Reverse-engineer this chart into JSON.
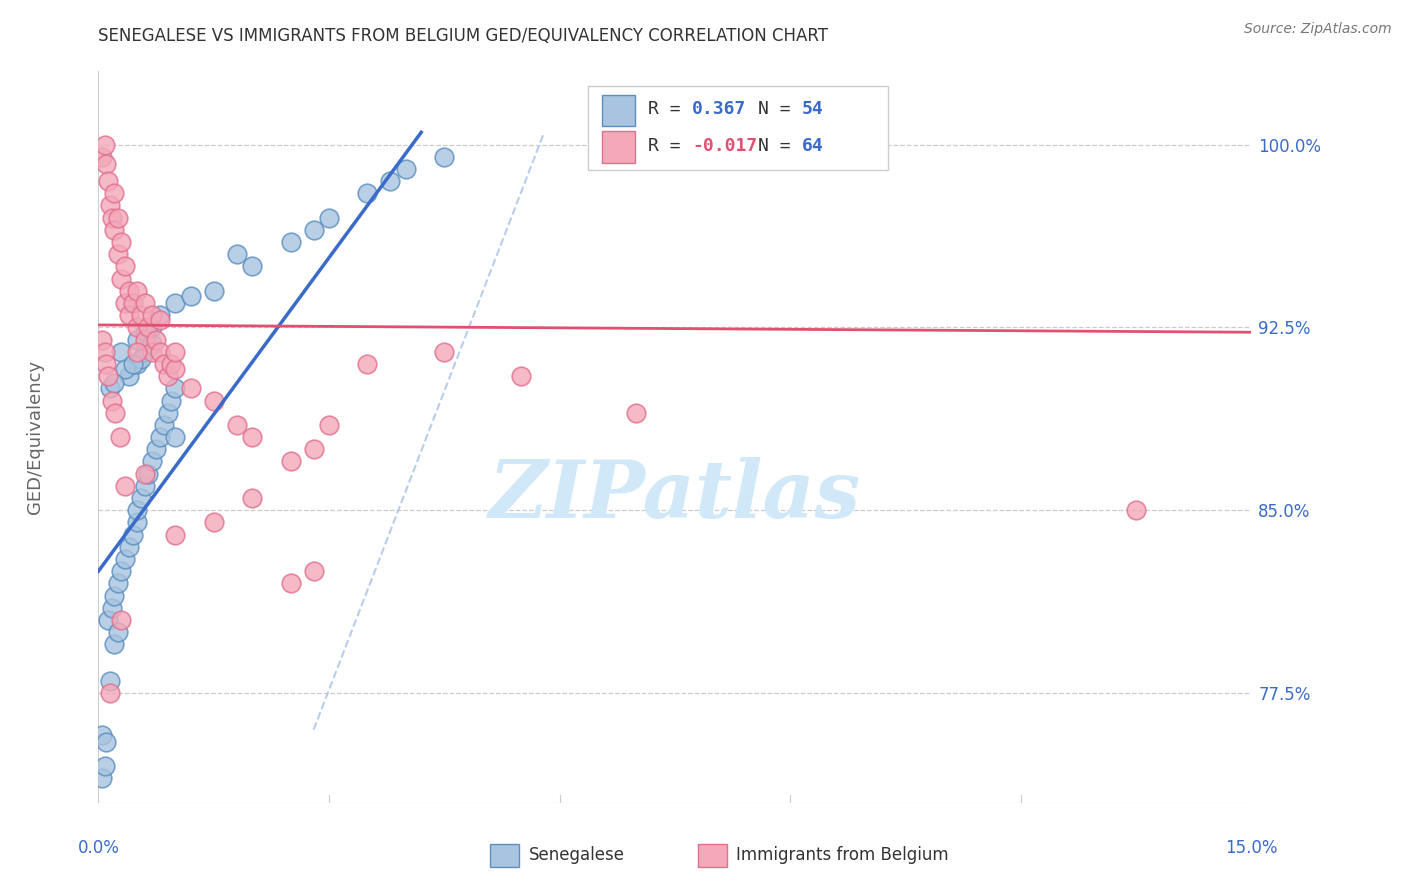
{
  "title": "SENEGALESE VS IMMIGRANTS FROM BELGIUM GED/EQUIVALENCY CORRELATION CHART",
  "source": "Source: ZipAtlas.com",
  "ylabel": "GED/Equivalency",
  "ytick_positions": [
    77.5,
    85.0,
    92.5,
    100.0
  ],
  "ytick_labels": [
    "77.5%",
    "85.0%",
    "92.5%",
    "100.0%"
  ],
  "xmin": 0.0,
  "xmax": 15.0,
  "ymin": 73.0,
  "ymax": 103.0,
  "blue_scatter": [
    [
      0.05,
      74.0
    ],
    [
      0.08,
      74.5
    ],
    [
      0.05,
      75.8
    ],
    [
      0.1,
      75.5
    ],
    [
      0.12,
      80.5
    ],
    [
      0.18,
      81.0
    ],
    [
      0.2,
      81.5
    ],
    [
      0.25,
      82.0
    ],
    [
      0.3,
      82.5
    ],
    [
      0.35,
      83.0
    ],
    [
      0.4,
      83.5
    ],
    [
      0.45,
      84.0
    ],
    [
      0.5,
      84.5
    ],
    [
      0.5,
      85.0
    ],
    [
      0.55,
      85.5
    ],
    [
      0.6,
      86.0
    ],
    [
      0.65,
      86.5
    ],
    [
      0.7,
      87.0
    ],
    [
      0.75,
      87.5
    ],
    [
      0.8,
      88.0
    ],
    [
      0.85,
      88.5
    ],
    [
      0.9,
      89.0
    ],
    [
      0.95,
      89.5
    ],
    [
      1.0,
      90.0
    ],
    [
      0.3,
      91.5
    ],
    [
      0.5,
      92.0
    ],
    [
      0.6,
      92.3
    ],
    [
      0.7,
      92.5
    ],
    [
      0.8,
      93.0
    ],
    [
      1.0,
      93.5
    ],
    [
      1.5,
      94.0
    ],
    [
      2.0,
      95.0
    ],
    [
      2.5,
      96.0
    ],
    [
      3.0,
      97.0
    ],
    [
      3.5,
      98.0
    ],
    [
      4.0,
      99.0
    ],
    [
      4.5,
      99.5
    ],
    [
      0.2,
      79.5
    ],
    [
      0.15,
      78.0
    ],
    [
      0.25,
      80.0
    ],
    [
      0.4,
      90.5
    ],
    [
      0.5,
      91.0
    ],
    [
      0.6,
      91.5
    ],
    [
      1.2,
      93.8
    ],
    [
      1.8,
      95.5
    ],
    [
      1.0,
      88.0
    ],
    [
      0.7,
      91.8
    ],
    [
      0.55,
      91.2
    ],
    [
      0.35,
      90.8
    ],
    [
      0.45,
      91.0
    ],
    [
      0.15,
      90.0
    ],
    [
      0.2,
      90.2
    ],
    [
      2.8,
      96.5
    ],
    [
      3.8,
      98.5
    ]
  ],
  "pink_scatter": [
    [
      0.05,
      99.5
    ],
    [
      0.08,
      100.0
    ],
    [
      0.1,
      99.2
    ],
    [
      0.12,
      98.5
    ],
    [
      0.15,
      97.5
    ],
    [
      0.18,
      97.0
    ],
    [
      0.2,
      96.5
    ],
    [
      0.2,
      98.0
    ],
    [
      0.25,
      95.5
    ],
    [
      0.25,
      97.0
    ],
    [
      0.3,
      96.0
    ],
    [
      0.3,
      94.5
    ],
    [
      0.35,
      95.0
    ],
    [
      0.35,
      93.5
    ],
    [
      0.4,
      94.0
    ],
    [
      0.4,
      93.0
    ],
    [
      0.45,
      93.5
    ],
    [
      0.5,
      92.5
    ],
    [
      0.5,
      94.0
    ],
    [
      0.55,
      93.0
    ],
    [
      0.6,
      92.0
    ],
    [
      0.6,
      93.5
    ],
    [
      0.65,
      92.5
    ],
    [
      0.7,
      91.5
    ],
    [
      0.7,
      93.0
    ],
    [
      0.75,
      92.0
    ],
    [
      0.8,
      91.5
    ],
    [
      0.8,
      92.8
    ],
    [
      0.85,
      91.0
    ],
    [
      0.9,
      90.5
    ],
    [
      0.95,
      91.0
    ],
    [
      1.0,
      90.8
    ],
    [
      1.2,
      90.0
    ],
    [
      1.5,
      89.5
    ],
    [
      1.8,
      88.5
    ],
    [
      2.0,
      88.0
    ],
    [
      2.5,
      87.0
    ],
    [
      2.8,
      87.5
    ],
    [
      0.15,
      77.5
    ],
    [
      0.3,
      80.5
    ],
    [
      2.5,
      82.0
    ],
    [
      2.8,
      82.5
    ],
    [
      1.5,
      84.5
    ],
    [
      4.5,
      91.5
    ],
    [
      7.0,
      89.0
    ],
    [
      13.5,
      85.0
    ],
    [
      3.5,
      91.0
    ],
    [
      0.5,
      91.5
    ],
    [
      0.05,
      92.0
    ],
    [
      0.08,
      91.5
    ],
    [
      0.1,
      91.0
    ],
    [
      0.12,
      90.5
    ],
    [
      0.18,
      89.5
    ],
    [
      0.22,
      89.0
    ],
    [
      0.28,
      88.0
    ],
    [
      1.0,
      91.5
    ],
    [
      2.0,
      85.5
    ],
    [
      1.0,
      84.0
    ],
    [
      0.35,
      86.0
    ],
    [
      0.6,
      86.5
    ],
    [
      3.0,
      88.5
    ],
    [
      5.5,
      90.5
    ]
  ],
  "blue_line": {
    "x0": 0.0,
    "y0": 82.5,
    "x1": 4.2,
    "y1": 100.5
  },
  "pink_line": {
    "x0": 0.0,
    "y0": 92.6,
    "x1": 15.0,
    "y1": 92.3
  },
  "dashed_line": {
    "x0": 2.8,
    "y0": 76.0,
    "x1": 5.8,
    "y1": 100.5
  },
  "blue_line_color": "#3a6bc9",
  "pink_line_color": "#e05070",
  "dashed_line_color": "#b0c8e8",
  "scatter_blue_face": "#a8c4e0",
  "scatter_blue_edge": "#5a8fc0",
  "scatter_pink_face": "#f4a8b8",
  "scatter_pink_edge": "#e07090",
  "watermark_color": "#d0e8f8",
  "grid_color": "#cccccc",
  "axis_label_color": "#3a6bc9",
  "title_color": "#333333",
  "legend_R_blue_color": "#3a6bc9",
  "legend_R_pink_color": "#e05070"
}
